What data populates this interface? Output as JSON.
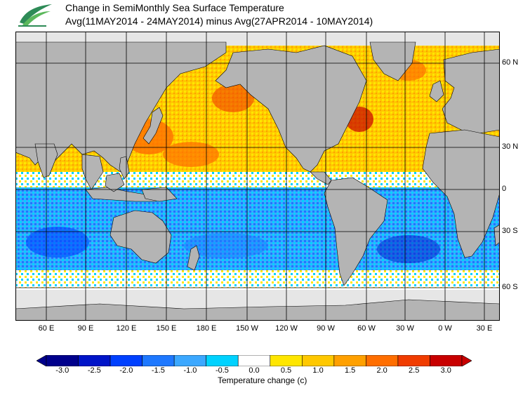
{
  "header": {
    "title_line1": "Change in SemiMonthly Sea Surface Temperature",
    "title_line2": "Avg(11MAY2014 - 24MAY2014) minus Avg(27APR2014 - 10MAY2014)"
  },
  "map": {
    "lon_labels": [
      "60 E",
      "90 E",
      "120 E",
      "150 E",
      "180 E",
      "150 W",
      "120 W",
      "90 W",
      "60 W",
      "30 W",
      "0 W",
      "30 E"
    ],
    "lat_labels": [
      "60 N",
      "30 N",
      "0",
      "30 S",
      "60 S"
    ]
  },
  "colorbar": {
    "title": "Temperature change (c)",
    "tick_labels": [
      "-3.0",
      "-2.5",
      "-2.0",
      "-1.5",
      "-1.0",
      "-0.5",
      "0.0",
      "0.5",
      "1.0",
      "1.5",
      "2.0",
      "2.5",
      "3.0"
    ],
    "colors": [
      "#00008c",
      "#0014c8",
      "#0040ff",
      "#1e78ff",
      "#3ca8ff",
      "#00d2ff",
      "#ffffff",
      "#ffe600",
      "#ffc800",
      "#ffa000",
      "#ff6e00",
      "#f03c00",
      "#c80000"
    ],
    "land_color": "#b4b4b4",
    "ice_color": "#e6e6e6"
  }
}
